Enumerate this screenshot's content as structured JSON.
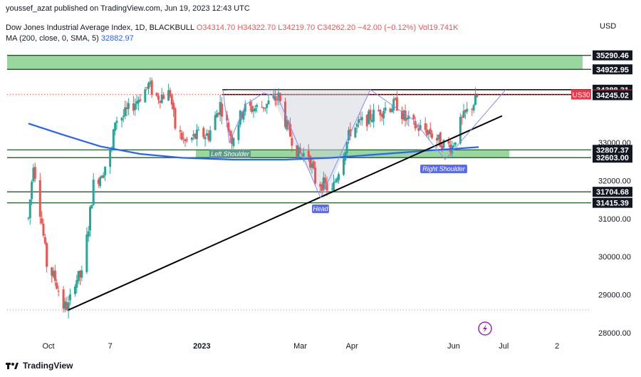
{
  "header": {
    "published": "youssef_azat published on TradingView.com, Jun 19, 2023 12:43 UTC"
  },
  "legend": {
    "symbol": "Dow Jones Industrial Average Index, 1D, BLACKBULL",
    "open": "O34314.70",
    "high": "H34322.70",
    "low": "L34219.70",
    "close": "C34262.20",
    "change": "−42.00 (−0.12%)",
    "volume": "Vol19.741K",
    "ma_label": "MA (200, close, 0, SMA, 5)",
    "ma_value": "32882.97"
  },
  "currency": "USD",
  "footer": {
    "brand": "TradingView"
  },
  "colors": {
    "up": "#26a69a",
    "down": "#ef5350",
    "zone_fill": "#77c97d",
    "zone_border": "#1b5e20",
    "ma": "#2962ff",
    "pattern": "#7f8cff",
    "trendline": "#000000",
    "symbol_tag": "#f23645"
  },
  "chart_data": {
    "type": "candlestick",
    "title": "Dow Jones Industrial Average Index, 1D, BLACKBULL",
    "y_ticks": [
      28000,
      29000,
      30000,
      31000,
      32000,
      33000
    ],
    "y_tick_labels": [
      "28000.00",
      "29000.00",
      "30000.00",
      "31000.00",
      "32000.00",
      "33000.00"
    ],
    "x_ticks": [
      {
        "label": "Oct",
        "date": "2022-10-01"
      },
      {
        "label": "7",
        "date": "2022-11-07"
      },
      {
        "label": "2023",
        "date": "2023-01-01"
      },
      {
        "label": "Mar",
        "date": "2023-03-01"
      },
      {
        "label": "Apr",
        "date": "2023-04-01"
      },
      {
        "label": "Jun",
        "date": "2023-06-01"
      },
      {
        "label": "Jul",
        "date": "2023-07-01"
      },
      {
        "label": "2",
        "date": "2023-08-02"
      }
    ],
    "price_levels": [
      {
        "value": 35290.46,
        "label": "35290.46",
        "style": "boxed-dark"
      },
      {
        "value": 34922.95,
        "label": "34922.95",
        "style": "boxed-dark"
      },
      {
        "value": 34388.31,
        "label": "34388.31",
        "style": "boxed-dark"
      },
      {
        "value": 34262.2,
        "label": "34262.20",
        "style": "current",
        "tag": "US30"
      },
      {
        "value": 34245.02,
        "label": "34245.02",
        "style": "boxed-dark"
      },
      {
        "value": 32807.37,
        "label": "32807.37",
        "style": "boxed-dark"
      },
      {
        "value": 32603.0,
        "label": "32603.00",
        "style": "boxed-dark"
      },
      {
        "value": 31704.68,
        "label": "31704.68",
        "style": "boxed-dark"
      },
      {
        "value": 31415.39,
        "label": "31415.39",
        "style": "boxed-dark"
      }
    ],
    "zones": [
      {
        "from": 34922.95,
        "to": 35290.46
      },
      {
        "from": 32603.0,
        "to": 32807.37
      }
    ],
    "support_lines": [
      31704.68,
      31415.39
    ],
    "resistance_lines": [
      34388.31,
      34262.2
    ],
    "pattern_labels": [
      {
        "text": "Left Shoulder"
      },
      {
        "text": "Head"
      },
      {
        "text": "Right Shoulder"
      }
    ],
    "dotted_low_line": 28600,
    "path_points": [
      [
        "2022-09-19",
        31000
      ],
      [
        "2022-09-22",
        32500
      ],
      [
        "2022-09-27",
        30900
      ],
      [
        "2022-09-30",
        29800
      ],
      [
        "2022-10-05",
        29400
      ],
      [
        "2022-10-10",
        28700
      ],
      [
        "2022-10-13",
        28700
      ],
      [
        "2022-10-17",
        29400
      ],
      [
        "2022-10-21",
        29500
      ],
      [
        "2022-10-25",
        30800
      ],
      [
        "2022-10-28",
        31900
      ],
      [
        "2022-11-02",
        32200
      ],
      [
        "2022-11-08",
        32800
      ],
      [
        "2022-11-10",
        33600
      ],
      [
        "2022-11-15",
        33700
      ],
      [
        "2022-11-21",
        34000
      ],
      [
        "2022-11-30",
        34500
      ],
      [
        "2022-12-05",
        34200
      ],
      [
        "2022-12-13",
        34300
      ],
      [
        "2022-12-16",
        33400
      ],
      [
        "2022-12-22",
        33000
      ],
      [
        "2022-12-30",
        33200
      ],
      [
        "2023-01-05",
        33200
      ],
      [
        "2023-01-12",
        34000
      ],
      [
        "2023-01-19",
        33100
      ],
      [
        "2023-01-26",
        33900
      ],
      [
        "2023-02-02",
        33900
      ],
      [
        "2023-02-09",
        34000
      ],
      [
        "2023-02-16",
        34200
      ],
      [
        "2023-02-21",
        33400
      ],
      [
        "2023-02-28",
        32700
      ],
      [
        "2023-03-06",
        32700
      ],
      [
        "2023-03-10",
        32000
      ],
      [
        "2023-03-15",
        31900
      ],
      [
        "2023-03-20",
        31700
      ],
      [
        "2023-03-24",
        32300
      ],
      [
        "2023-03-31",
        33300
      ],
      [
        "2023-04-06",
        33500
      ],
      [
        "2023-04-13",
        33700
      ],
      [
        "2023-04-20",
        33900
      ],
      [
        "2023-04-28",
        34000
      ],
      [
        "2023-05-03",
        33600
      ],
      [
        "2023-05-10",
        33400
      ],
      [
        "2023-05-17",
        33300
      ],
      [
        "2023-05-24",
        33000
      ],
      [
        "2023-05-31",
        32900
      ],
      [
        "2023-06-05",
        33500
      ],
      [
        "2023-06-09",
        33800
      ],
      [
        "2023-06-14",
        34100
      ],
      [
        "2023-06-16",
        34262
      ]
    ],
    "ma_points": [
      [
        "2022-09-19",
        33500
      ],
      [
        "2022-10-10",
        33200
      ],
      [
        "2022-11-01",
        32900
      ],
      [
        "2022-11-25",
        32700
      ],
      [
        "2022-12-20",
        32600
      ],
      [
        "2023-01-20",
        32550
      ],
      [
        "2023-02-20",
        32550
      ],
      [
        "2023-03-20",
        32600
      ],
      [
        "2023-04-20",
        32700
      ],
      [
        "2023-05-20",
        32800
      ],
      [
        "2023-06-16",
        32880
      ]
    ],
    "trendline": [
      [
        "2022-10-13",
        28600
      ],
      [
        "2023-06-30",
        33700
      ]
    ]
  }
}
